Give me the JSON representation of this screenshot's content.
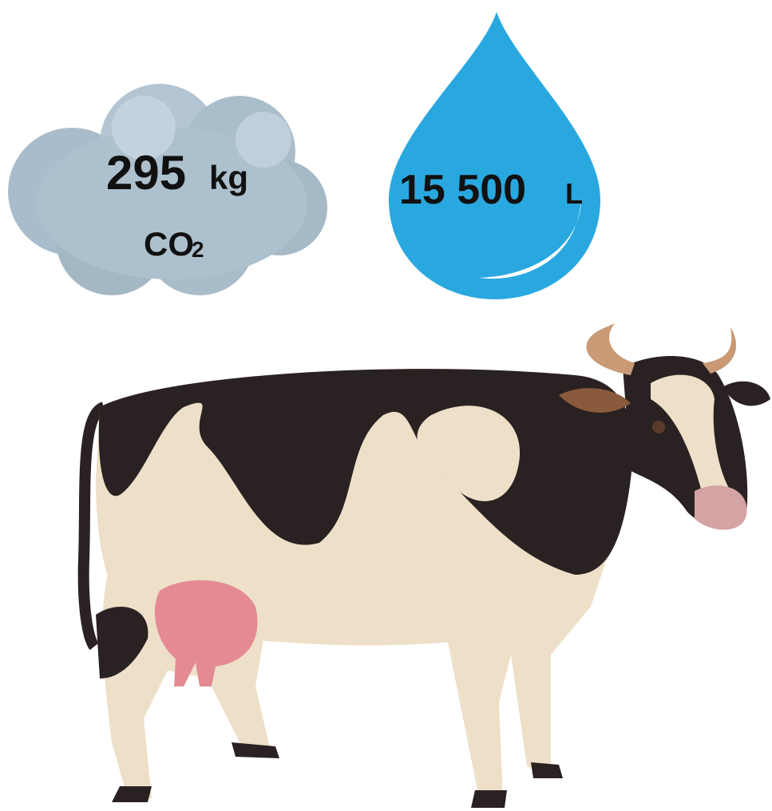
{
  "cloud": {
    "value": "295",
    "unit": "kg",
    "gas": "CO",
    "subscript": "2"
  },
  "drop": {
    "value": "15 500",
    "unit": "L"
  }
}
